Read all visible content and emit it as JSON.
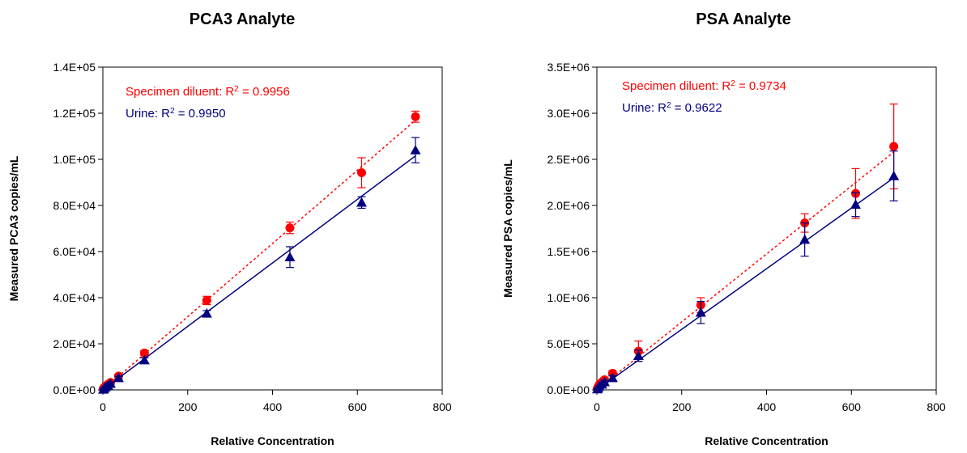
{
  "colors": {
    "diluent": "#ff0000",
    "urine": "#000080",
    "axis": "#000000",
    "background": "#ffffff"
  },
  "chart_data": [
    {
      "type": "scatter",
      "title": "PCA3 Analyte",
      "xlabel": "Relative Concentration",
      "ylabel": "Measured PCA3 copies/mL",
      "xlim": [
        0,
        800
      ],
      "ylim": [
        0,
        140000
      ],
      "x_ticks": [
        "0",
        "200",
        "400",
        "600",
        "800"
      ],
      "y_ticks": [
        "0.0E+00",
        "2.0E+04",
        "4.0E+04",
        "6.0E+04",
        "8.0E+04",
        "1.0E+05",
        "1.2E+05",
        "1.4E+05"
      ],
      "grid": false,
      "annotations": [
        {
          "series": "diluent",
          "label": "Specimen diluent: R",
          "sup": "2",
          "value": " = 0.9956"
        },
        {
          "series": "urine",
          "label": "Urine: R",
          "sup": "2",
          "value": " = 0.9950"
        }
      ],
      "series": [
        {
          "key": "diluent",
          "marker": "circle",
          "line": "dotted",
          "x": [
            1,
            3,
            6,
            12,
            18,
            37,
            98,
            245,
            441,
            610,
            737
          ],
          "y": [
            500,
            1000,
            1600,
            2400,
            3200,
            6000,
            16000,
            38800,
            70300,
            94200,
            118500
          ],
          "err": [
            200,
            300,
            400,
            500,
            600,
            800,
            1000,
            1800,
            2500,
            6500,
            2400
          ],
          "fit": {
            "x0": 0,
            "y0": 0,
            "x1": 737,
            "y1": 117000
          }
        },
        {
          "key": "urine",
          "marker": "triangle",
          "line": "solid",
          "x": [
            1,
            3,
            6,
            12,
            18,
            37,
            98,
            245,
            441,
            610,
            737
          ],
          "y": [
            200,
            600,
            1200,
            1900,
            2700,
            5200,
            12900,
            33200,
            57600,
            81300,
            104000
          ],
          "err": [
            100,
            200,
            300,
            400,
            500,
            700,
            1000,
            1200,
            4500,
            2500,
            5500
          ],
          "fit": {
            "x0": 0,
            "y0": 0,
            "x1": 737,
            "y1": 101500
          }
        }
      ]
    },
    {
      "type": "scatter",
      "title": "PSA Analyte",
      "xlabel": "Relative Concentration",
      "ylabel": "Measured PSA copies/mL",
      "xlim": [
        0,
        800
      ],
      "ylim": [
        0,
        3500000
      ],
      "x_ticks": [
        "0",
        "200",
        "400",
        "600",
        "800"
      ],
      "y_ticks": [
        "0.0E+00",
        "5.0E+05",
        "1.0E+06",
        "1.5E+06",
        "2.0E+06",
        "2.5E+06",
        "3.0E+06",
        "3.5E+06"
      ],
      "grid": false,
      "annotations": [
        {
          "series": "diluent",
          "label": "Specimen diluent: R",
          "sup": "2",
          "value": " = 0.9734"
        },
        {
          "series": "urine",
          "label": "Urine: R",
          "sup": "2",
          "value": " = 0.9622"
        }
      ],
      "series": [
        {
          "key": "diluent",
          "marker": "circle",
          "line": "dotted",
          "x": [
            1,
            3,
            6,
            12,
            18,
            37,
            98,
            245,
            490,
            610,
            700
          ],
          "y": [
            15000,
            35000,
            60000,
            85000,
            110000,
            180000,
            420000,
            920000,
            1810000,
            2130000,
            2640000
          ],
          "err": [
            5000,
            10000,
            15000,
            20000,
            25000,
            30000,
            110000,
            80000,
            100000,
            270000,
            460000
          ],
          "fit": {
            "x0": 0,
            "y0": 0,
            "x1": 700,
            "y1": 2580000
          }
        },
        {
          "key": "urine",
          "marker": "triangle",
          "line": "solid",
          "x": [
            1,
            3,
            6,
            12,
            18,
            37,
            98,
            245,
            490,
            610,
            700
          ],
          "y": [
            8000,
            20000,
            40000,
            60000,
            85000,
            130000,
            370000,
            840000,
            1630000,
            2010000,
            2320000
          ],
          "err": [
            5000,
            8000,
            10000,
            15000,
            20000,
            25000,
            60000,
            120000,
            180000,
            130000,
            270000
          ],
          "fit": {
            "x0": 0,
            "y0": 0,
            "x1": 700,
            "y1": 2300000
          }
        }
      ]
    }
  ]
}
